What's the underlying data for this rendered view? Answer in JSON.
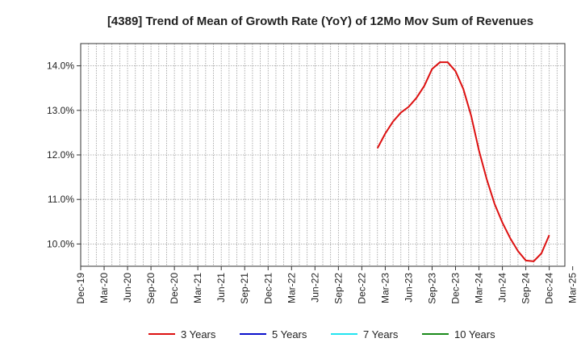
{
  "chart_data": {
    "type": "line",
    "title": "[4389]  Trend of Mean of Growth Rate (YoY) of 12Mo Mov Sum of Revenues",
    "xlabel": "",
    "ylabel": "",
    "ylim": [
      9.5,
      14.5
    ],
    "y_ticks": [
      10.0,
      11.0,
      12.0,
      13.0,
      14.0
    ],
    "y_tick_labels": [
      "10.0%",
      "11.0%",
      "12.0%",
      "13.0%",
      "14.0%"
    ],
    "x_start": "Dec-19",
    "x_month_count": 63,
    "x_tick_labels": [
      "Dec-19",
      "Mar-20",
      "Jun-20",
      "Sep-20",
      "Dec-20",
      "Mar-21",
      "Jun-21",
      "Sep-21",
      "Dec-21",
      "Mar-22",
      "Jun-22",
      "Sep-22",
      "Dec-22",
      "Mar-23",
      "Jun-23",
      "Sep-23",
      "Dec-23",
      "Mar-24",
      "Jun-24",
      "Sep-24",
      "Dec-24",
      "Mar-25"
    ],
    "grid": true,
    "legend_position": "bottom",
    "series": [
      {
        "name": "3 Years",
        "color": "#dd1111",
        "start_index": 38,
        "values": [
          12.15,
          12.48,
          12.75,
          12.95,
          13.08,
          13.28,
          13.55,
          13.93,
          14.08,
          14.08,
          13.88,
          13.48,
          12.88,
          12.1,
          11.45,
          10.9,
          10.48,
          10.13,
          9.84,
          9.63,
          9.61,
          9.79,
          10.2
        ]
      },
      {
        "name": "5 Years",
        "color": "#0a10cc",
        "start_index": 0,
        "values": []
      },
      {
        "name": "7 Years",
        "color": "#22e4f0",
        "start_index": 0,
        "values": []
      },
      {
        "name": "10 Years",
        "color": "#1a8a1a",
        "start_index": 0,
        "values": []
      }
    ]
  }
}
